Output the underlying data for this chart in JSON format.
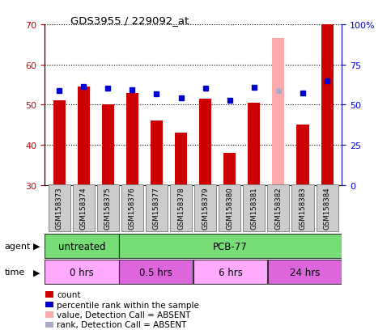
{
  "title": "GDS3955 / 229092_at",
  "samples": [
    "GSM158373",
    "GSM158374",
    "GSM158375",
    "GSM158376",
    "GSM158377",
    "GSM158378",
    "GSM158379",
    "GSM158380",
    "GSM158381",
    "GSM158382",
    "GSM158383",
    "GSM158384"
  ],
  "bar_values": [
    51,
    54.5,
    50,
    53,
    46,
    43,
    51.5,
    38,
    50.5,
    66.5,
    45,
    70
  ],
  "bar_absent": [
    false,
    false,
    false,
    false,
    false,
    false,
    false,
    false,
    false,
    true,
    false,
    false
  ],
  "rank_values": [
    53.5,
    54.5,
    54.2,
    53.8,
    52.7,
    51.7,
    54.2,
    51.1,
    54.3,
    53.5,
    52.8,
    56.0
  ],
  "rank_absent": [
    false,
    false,
    false,
    false,
    false,
    false,
    false,
    false,
    false,
    true,
    false,
    false
  ],
  "bar_color": "#cc0000",
  "bar_absent_color": "#ffaaaa",
  "rank_color": "#0000cc",
  "rank_absent_color": "#aaaacc",
  "ylim_left": [
    30,
    70
  ],
  "ylim_right": [
    0,
    100
  ],
  "yticks_left": [
    30,
    40,
    50,
    60,
    70
  ],
  "yticks_right": [
    0,
    25,
    50,
    75,
    100
  ],
  "ytick_labels_right": [
    "0",
    "25",
    "50",
    "75",
    "100%"
  ],
  "agent_groups": [
    {
      "label": "untreated",
      "start": 0,
      "end": 3,
      "color": "#77dd77"
    },
    {
      "label": "PCB-77",
      "start": 3,
      "end": 12,
      "color": "#77dd77"
    }
  ],
  "time_groups": [
    {
      "label": "0 hrs",
      "start": 0,
      "end": 3,
      "color": "#ffaaff"
    },
    {
      "label": "0.5 hrs",
      "start": 3,
      "end": 6,
      "color": "#dd66dd"
    },
    {
      "label": "6 hrs",
      "start": 6,
      "end": 9,
      "color": "#ffaaff"
    },
    {
      "label": "24 hrs",
      "start": 9,
      "end": 12,
      "color": "#dd66dd"
    }
  ],
  "legend_items": [
    {
      "label": "count",
      "color": "#cc0000"
    },
    {
      "label": "percentile rank within the sample",
      "color": "#0000cc"
    },
    {
      "label": "value, Detection Call = ABSENT",
      "color": "#ffaaaa"
    },
    {
      "label": "rank, Detection Call = ABSENT",
      "color": "#aaaacc"
    }
  ],
  "bar_width": 0.5,
  "rank_marker_size": 5,
  "background_color": "#ffffff",
  "left_axis_color": "#cc0000",
  "right_axis_color": "#0000cc"
}
